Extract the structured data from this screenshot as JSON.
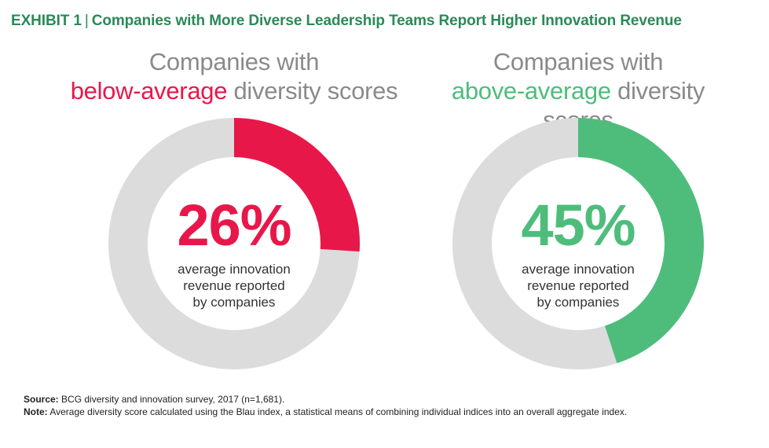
{
  "exhibit": {
    "label": "EXHIBIT 1",
    "separator": "|",
    "title": "Companies with More Diverse Leadership Teams Report Higher Innovation Revenue"
  },
  "colors": {
    "title_green": "#2a8a57",
    "pink": "#e8174a",
    "green": "#4ebd7c",
    "ring_gray": "#dcdcdc",
    "heading_gray": "#8a8a8a"
  },
  "chart_data": [
    {
      "type": "pie",
      "variant": "donut",
      "title_line1": "Companies with",
      "title_highlight": "below-average",
      "title_rest": "diversity scores",
      "value": 26,
      "value_label": "26%",
      "caption": [
        "average innovation",
        "revenue reported",
        "by companies"
      ],
      "slices": [
        {
          "name": "innovation revenue",
          "value": 26
        },
        {
          "name": "remainder",
          "value": 74
        }
      ]
    },
    {
      "type": "pie",
      "variant": "donut",
      "title_line1": "Companies with",
      "title_highlight": "above-average",
      "title_rest": "diversity scores",
      "value": 45,
      "value_label": "45%",
      "caption": [
        "average innovation",
        "revenue reported",
        "by companies"
      ],
      "slices": [
        {
          "name": "innovation revenue",
          "value": 45
        },
        {
          "name": "remainder",
          "value": 55
        }
      ]
    }
  ],
  "footnotes": {
    "source_label": "Source:",
    "source_text": "BCG diversity and innovation survey, 2017 (n=1,681).",
    "note_label": "Note:",
    "note_text": "Average diversity score calculated using the Blau index, a statistical means of combining individual indices into an overall aggregate index."
  }
}
